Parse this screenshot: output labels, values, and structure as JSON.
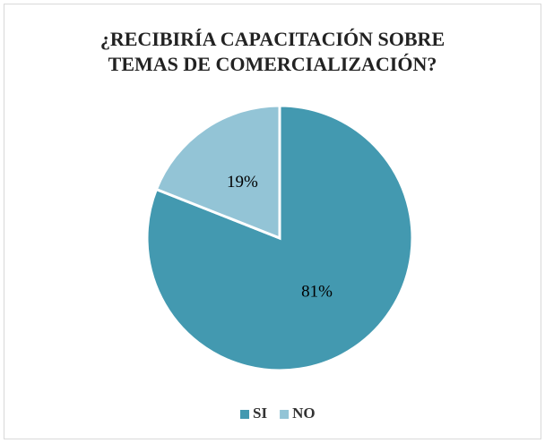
{
  "chart_data": {
    "type": "pie",
    "title": [
      "¿RECIBIRÍA CAPACITACIÓN SOBRE",
      "TEMAS DE COMERCIALIZACIÓN?"
    ],
    "categories": [
      "SI",
      "NO"
    ],
    "values": [
      81,
      19
    ],
    "value_labels": [
      "81%",
      "19%"
    ],
    "colors": [
      "#4399b0",
      "#93c4d6"
    ],
    "legend": "bottom"
  }
}
